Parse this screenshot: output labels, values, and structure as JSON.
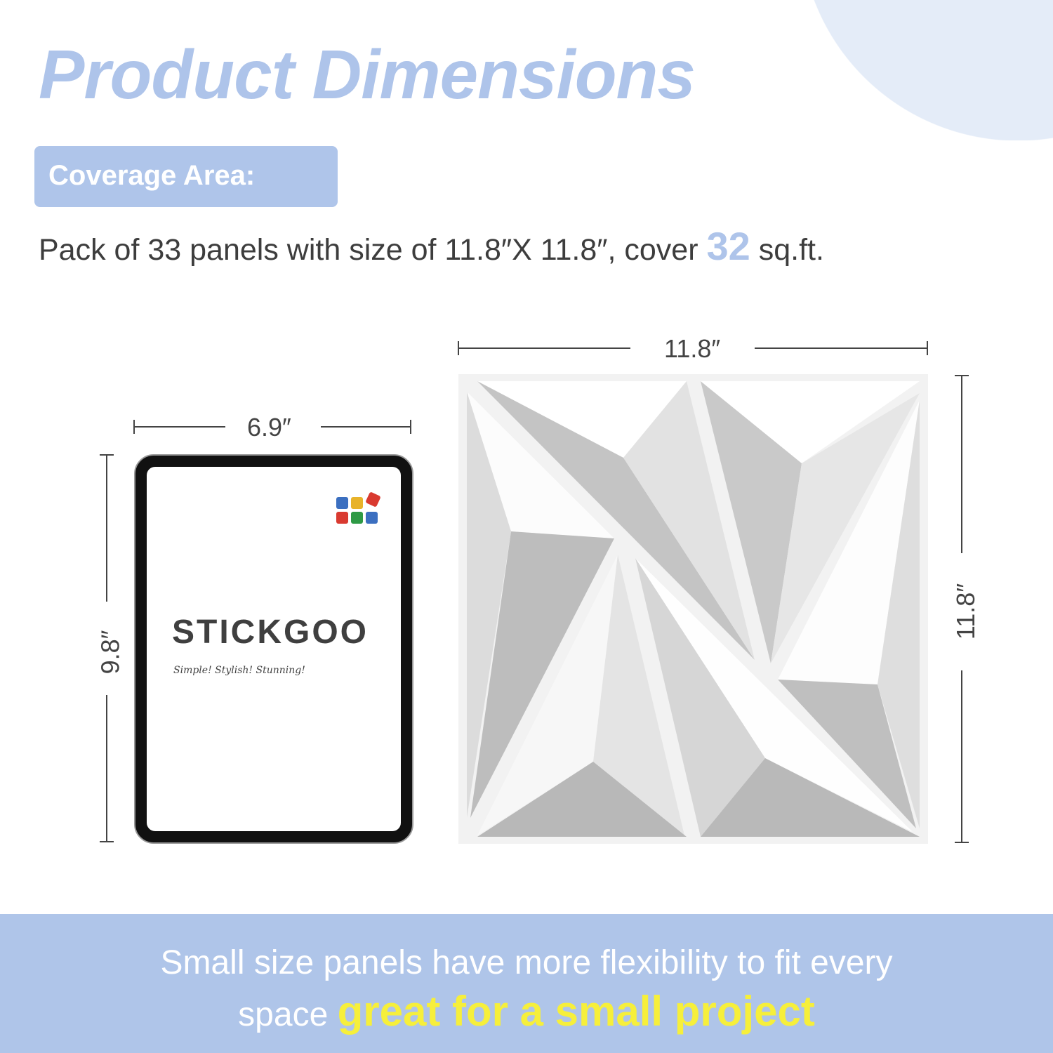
{
  "header": {
    "title": "Product Dimensions"
  },
  "coverage": {
    "badge": "Coverage Area:",
    "text_before": "Pack of 33 panels with size of 11.8″X 11.8″, cover ",
    "highlight": "32",
    "text_after": " sq.ft."
  },
  "tablet": {
    "width_label": "6.9″",
    "height_label": "9.8″",
    "brand": "STICKGOO",
    "tagline": "Simple! Stylish! Stunning!",
    "logo_colors": [
      "#3b6fc0",
      "#e8b32a",
      "#d93a30",
      "#d93a30",
      "#2e9a45",
      "#3b6fc0"
    ]
  },
  "panel": {
    "width_label": "11.8″",
    "height_label": "11.8″"
  },
  "footer": {
    "line1": "Small size panels have more flexibility to fit every",
    "line2_before": "space ",
    "line2_highlight": "great for a small project"
  },
  "colors": {
    "accent": "#aec4ea",
    "band": "#afc5e9",
    "highlight_yellow": "#f6ef3b"
  }
}
